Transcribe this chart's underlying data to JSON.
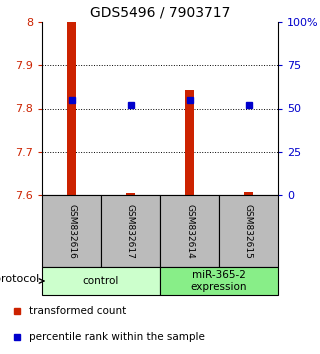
{
  "title": "GDS5496 / 7903717",
  "samples": [
    "GSM832616",
    "GSM832617",
    "GSM832614",
    "GSM832615"
  ],
  "transformed_count": [
    8.0,
    7.605,
    7.843,
    7.607
  ],
  "percentile_rank": [
    55.0,
    52.0,
    55.0,
    52.0
  ],
  "bar_base": 7.6,
  "ylim_left": [
    7.6,
    8.0
  ],
  "ylim_right": [
    0,
    100
  ],
  "yticks_left": [
    7.6,
    7.7,
    7.8,
    7.9,
    8.0
  ],
  "yticks_right": [
    0,
    25,
    50,
    75,
    100
  ],
  "ytick_labels_left": [
    "7.6",
    "7.7",
    "7.8",
    "7.9",
    "8"
  ],
  "ytick_labels_right": [
    "0",
    "25",
    "50",
    "75",
    "100%"
  ],
  "bar_color": "#cc2200",
  "dot_color": "#0000cc",
  "grid_color": "#000000",
  "groups": [
    {
      "label": "control",
      "sample_indices": [
        0,
        1
      ],
      "color": "#ccffcc"
    },
    {
      "label": "miR-365-2\nexpression",
      "sample_indices": [
        2,
        3
      ],
      "color": "#88ee88"
    }
  ],
  "legend_items": [
    {
      "label": "transformed count",
      "color": "#cc2200"
    },
    {
      "label": "percentile rank within the sample",
      "color": "#0000cc"
    }
  ],
  "protocol_label": "protocol",
  "sample_box_color": "#bbbbbb",
  "background_color": "#ffffff"
}
